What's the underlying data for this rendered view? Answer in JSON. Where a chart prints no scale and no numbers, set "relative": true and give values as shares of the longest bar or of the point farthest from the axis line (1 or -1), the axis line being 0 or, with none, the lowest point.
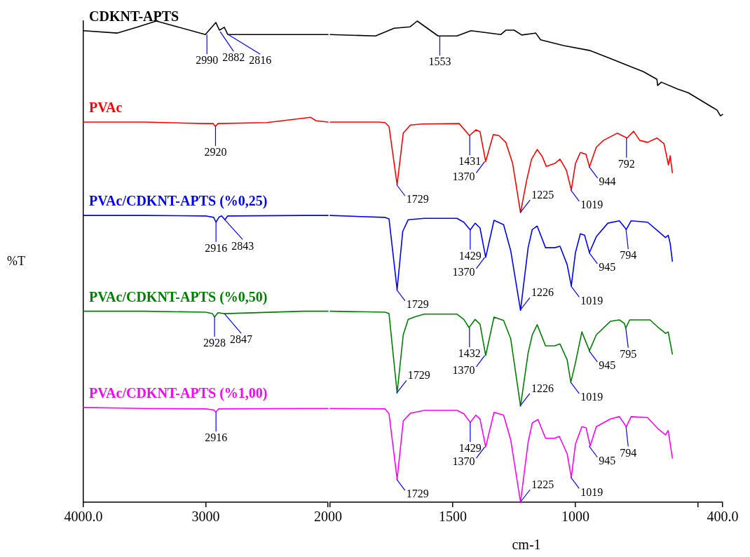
{
  "chart_data": [
    {
      "type": "line",
      "relative": true,
      "ylabel": "%T",
      "xlim": [
        4000,
        2000
      ],
      "xticks": [
        {
          "value": 4000,
          "label": "4000.0"
        },
        3000,
        2000
      ],
      "grid": false,
      "legend": false,
      "marker": "none",
      "line_style": "solid",
      "series": [
        {
          "name": "CDKNT-APTS",
          "color": "#000000",
          "x": [
            4000,
            3725,
            3553,
            3404,
            3232,
            3003,
            2917,
            2888,
            2848,
            2820,
            2500,
            2200,
            2000
          ],
          "values": [
            0.98,
            0.975,
            0.988,
            1.0,
            0.988,
            0.972,
            0.997,
            0.981,
            0.987,
            0.972,
            0.972,
            0.972,
            0.972
          ]
        },
        {
          "name": "PVAc",
          "color": "#ff0000",
          "x": [
            4000,
            3500,
            3000,
            2940,
            2920,
            2900,
            2500,
            2143,
            2100,
            2000
          ],
          "values": [
            0.79,
            0.79,
            0.787,
            0.787,
            0.781,
            0.787,
            0.789,
            0.8,
            0.793,
            0.79
          ]
        },
        {
          "name": "PVAc/CDKNT-APTS (%0,25)",
          "color": "#0000ff",
          "x": [
            4000,
            3500,
            3000,
            2935,
            2916,
            2890,
            2870,
            2843,
            2820,
            2200,
            2000
          ],
          "values": [
            0.596,
            0.596,
            0.595,
            0.592,
            0.582,
            0.593,
            0.595,
            0.587,
            0.595,
            0.596,
            0.596
          ]
        },
        {
          "name": "PVAc/CDKNT-APTS (%0,50)",
          "color": "#008000",
          "x": [
            4000,
            3500,
            3000,
            2945,
            2928,
            2900,
            2847,
            2200,
            2000
          ],
          "values": [
            0.397,
            0.397,
            0.395,
            0.392,
            0.385,
            0.394,
            0.392,
            0.397,
            0.397
          ]
        },
        {
          "name": "PVAc/CDKNT-APTS (%1,00)",
          "color": "#ff00ff",
          "x": [
            4000,
            3500,
            3000,
            2935,
            2916,
            2895,
            2200,
            2000
          ],
          "values": [
            0.197,
            0.195,
            0.194,
            0.192,
            0.188,
            0.194,
            0.195,
            0.195
          ]
        }
      ],
      "annotations": [
        {
          "text": "2990",
          "x": 2990,
          "y": 0.972
        },
        {
          "text": "2882",
          "x": 2882,
          "y": 0.978
        },
        {
          "text": "2816",
          "x": 2816,
          "y": 0.972
        },
        {
          "text": "2920",
          "x": 2920,
          "y": 0.781
        },
        {
          "text": "2916",
          "x": 2916,
          "y": 0.582
        },
        {
          "text": "2843",
          "x": 2843,
          "y": 0.587
        },
        {
          "text": "2928",
          "x": 2928,
          "y": 0.385
        },
        {
          "text": "2847",
          "x": 2847,
          "y": 0.392
        },
        {
          "text": "2916",
          "x": 2916,
          "y": 0.188
        }
      ]
    },
    {
      "type": "line",
      "relative": true,
      "xlabel": "cm-1",
      "xlim": [
        2000,
        400
      ],
      "xticks": [
        {
          "value": 2000,
          "label": null
        },
        1500,
        1000,
        {
          "value": 500,
          "label": null
        },
        {
          "value": 400,
          "label": "400.0"
        }
      ],
      "grid": false,
      "legend": false,
      "marker": "none",
      "line_style": "solid",
      "series": [
        {
          "color": "#000000",
          "x": [
            2000,
            1815,
            1739,
            1674,
            1645,
            1560,
            1483,
            1426,
            1304,
            1284,
            1250,
            1219,
            1162,
            1142,
            1048,
            943,
            866,
            773,
            724,
            668,
            665,
            650,
            585,
            540,
            469,
            423,
            409,
            400
          ],
          "values": [
            0.972,
            0.969,
            0.985,
            0.988,
            1.0,
            0.969,
            0.969,
            0.98,
            0.972,
            0.981,
            0.981,
            0.971,
            0.975,
            0.961,
            0.949,
            0.939,
            0.924,
            0.905,
            0.895,
            0.879,
            0.866,
            0.873,
            0.859,
            0.851,
            0.829,
            0.815,
            0.803,
            0.806
          ]
        },
        {
          "color": "#ff0000",
          "x": [
            2000,
            1800,
            1776,
            1760,
            1727,
            1702,
            1673,
            1625,
            1474,
            1432,
            1406,
            1389,
            1366,
            1335,
            1312,
            1284,
            1256,
            1224,
            1199,
            1179,
            1156,
            1136,
            1119,
            1085,
            1063,
            1037,
            1017,
            1000,
            980,
            957,
            943,
            915,
            886,
            830,
            790,
            763,
            738,
            706,
            668,
            639,
            621,
            614,
            605
          ],
          "values": [
            0.79,
            0.79,
            0.789,
            0.781,
            0.66,
            0.767,
            0.784,
            0.786,
            0.787,
            0.762,
            0.774,
            0.77,
            0.708,
            0.764,
            0.762,
            0.748,
            0.704,
            0.602,
            0.669,
            0.713,
            0.733,
            0.719,
            0.698,
            0.704,
            0.713,
            0.69,
            0.649,
            0.704,
            0.727,
            0.723,
            0.697,
            0.738,
            0.752,
            0.767,
            0.757,
            0.771,
            0.752,
            0.748,
            0.757,
            0.745,
            0.701,
            0.72,
            0.685
          ]
        },
        {
          "color": "#0000ff",
          "x": [
            2000,
            1776,
            1760,
            1727,
            1704,
            1682,
            1616,
            1483,
            1455,
            1429,
            1409,
            1389,
            1366,
            1332,
            1293,
            1264,
            1224,
            1193,
            1176,
            1156,
            1122,
            1085,
            1063,
            1034,
            1017,
            1000,
            980,
            963,
            943,
            915,
            868,
            821,
            793,
            773,
            706,
            662,
            633,
            622,
            614,
            605
          ],
          "values": [
            0.596,
            0.592,
            0.589,
            0.442,
            0.563,
            0.587,
            0.59,
            0.59,
            0.582,
            0.566,
            0.58,
            0.57,
            0.509,
            0.586,
            0.577,
            0.523,
            0.399,
            0.529,
            0.567,
            0.574,
            0.529,
            0.529,
            0.532,
            0.494,
            0.45,
            0.519,
            0.558,
            0.555,
            0.519,
            0.552,
            0.58,
            0.585,
            0.567,
            0.585,
            0.582,
            0.563,
            0.55,
            0.555,
            0.538,
            0.501
          ]
        },
        {
          "color": "#008000",
          "x": [
            2000,
            1776,
            1760,
            1727,
            1702,
            1682,
            1651,
            1616,
            1483,
            1455,
            1434,
            1409,
            1389,
            1366,
            1332,
            1293,
            1264,
            1224,
            1193,
            1176,
            1156,
            1122,
            1085,
            1063,
            1034,
            1019,
            1000,
            974,
            943,
            915,
            858,
            821,
            801,
            795,
            779,
            696,
            662,
            633,
            622,
            605
          ],
          "values": [
            0.397,
            0.395,
            0.392,
            0.227,
            0.348,
            0.38,
            0.386,
            0.391,
            0.391,
            0.38,
            0.363,
            0.38,
            0.37,
            0.305,
            0.385,
            0.378,
            0.34,
            0.2,
            0.31,
            0.348,
            0.369,
            0.325,
            0.325,
            0.329,
            0.296,
            0.249,
            0.29,
            0.354,
            0.315,
            0.348,
            0.376,
            0.379,
            0.372,
            0.362,
            0.379,
            0.379,
            0.363,
            0.351,
            0.354,
            0.308
          ]
        },
        {
          "color": "#ff00ff",
          "x": [
            2000,
            1776,
            1760,
            1727,
            1702,
            1673,
            1616,
            1483,
            1455,
            1429,
            1406,
            1389,
            1366,
            1332,
            1293,
            1264,
            1224,
            1193,
            1176,
            1153,
            1122,
            1085,
            1066,
            1034,
            1017,
            1000,
            974,
            957,
            940,
            915,
            858,
            821,
            793,
            773,
            706,
            662,
            633,
            622,
            605
          ],
          "values": [
            0.195,
            0.194,
            0.184,
            0.048,
            0.169,
            0.185,
            0.191,
            0.191,
            0.184,
            0.166,
            0.181,
            0.173,
            0.115,
            0.187,
            0.181,
            0.13,
            0.0,
            0.125,
            0.165,
            0.172,
            0.133,
            0.133,
            0.137,
            0.101,
            0.052,
            0.121,
            0.157,
            0.155,
            0.117,
            0.157,
            0.173,
            0.178,
            0.157,
            0.178,
            0.176,
            0.152,
            0.14,
            0.149,
            0.092
          ]
        }
      ],
      "annotations": [
        {
          "text": "1553",
          "x": 1553,
          "y": 0.969
        },
        {
          "text": "1729",
          "x": 1729,
          "y": 0.66
        },
        {
          "text": "1431",
          "x": 1431,
          "y": 0.762
        },
        {
          "text": "1370",
          "x": 1370,
          "y": 0.708
        },
        {
          "text": "1225",
          "x": 1225,
          "y": 0.602
        },
        {
          "text": "1019",
          "x": 1019,
          "y": 0.649
        },
        {
          "text": "944",
          "x": 944,
          "y": 0.697
        },
        {
          "text": "792",
          "x": 792,
          "y": 0.757
        },
        {
          "text": "1729",
          "x": 1729,
          "y": 0.442
        },
        {
          "text": "1429",
          "x": 1429,
          "y": 0.566
        },
        {
          "text": "1370",
          "x": 1370,
          "y": 0.509
        },
        {
          "text": "1226",
          "x": 1226,
          "y": 0.399
        },
        {
          "text": "1019",
          "x": 1019,
          "y": 0.45
        },
        {
          "text": "945",
          "x": 945,
          "y": 0.519
        },
        {
          "text": "794",
          "x": 794,
          "y": 0.567
        },
        {
          "text": "1729",
          "x": 1729,
          "y": 0.227
        },
        {
          "text": "1432",
          "x": 1432,
          "y": 0.363
        },
        {
          "text": "1370",
          "x": 1370,
          "y": 0.305
        },
        {
          "text": "1226",
          "x": 1226,
          "y": 0.2
        },
        {
          "text": "1019",
          "x": 1019,
          "y": 0.249
        },
        {
          "text": "945",
          "x": 945,
          "y": 0.315
        },
        {
          "text": "795",
          "x": 795,
          "y": 0.362
        },
        {
          "text": "1729",
          "x": 1729,
          "y": 0.048
        },
        {
          "text": "1429",
          "x": 1429,
          "y": 0.166
        },
        {
          "text": "1370",
          "x": 1370,
          "y": 0.115
        },
        {
          "text": "1225",
          "x": 1225,
          "y": 0.0
        },
        {
          "text": "1019",
          "x": 1019,
          "y": 0.052
        },
        {
          "text": "945",
          "x": 945,
          "y": 0.117
        },
        {
          "text": "794",
          "x": 794,
          "y": 0.157
        }
      ]
    }
  ]
}
